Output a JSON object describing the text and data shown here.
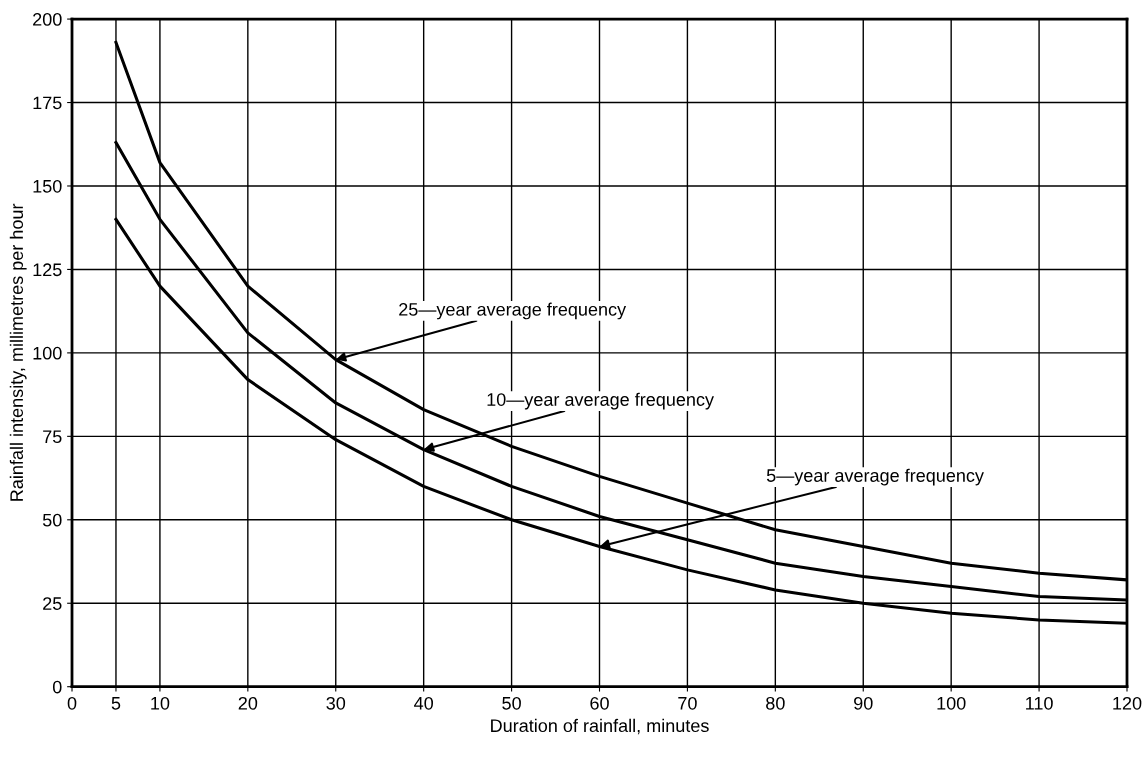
{
  "chart_data": {
    "type": "line",
    "xlabel": "Duration of rainfall, minutes",
    "ylabel": "Rainfall intensity, millimetres per hour",
    "x": [
      5,
      10,
      20,
      30,
      40,
      50,
      60,
      70,
      80,
      90,
      100,
      110,
      120
    ],
    "series": [
      {
        "color": "#000000",
        "values": [
          193,
          157,
          120,
          98,
          83,
          72,
          63,
          55,
          47,
          42,
          37,
          34,
          32
        ]
      },
      {
        "color": "#000000",
        "values": [
          163,
          140,
          106,
          85,
          71,
          60,
          51,
          44,
          37,
          33,
          30,
          27,
          26
        ]
      },
      {
        "color": "#000000",
        "values": [
          140,
          120,
          92,
          74,
          60,
          50,
          42,
          35,
          29,
          25,
          22,
          20,
          19
        ]
      }
    ],
    "xlim": [
      0,
      120
    ],
    "xticks": [
      0,
      5,
      10,
      20,
      30,
      40,
      50,
      60,
      70,
      80,
      90,
      100,
      110,
      120
    ],
    "ylim": [
      0,
      200
    ],
    "yticks": [
      0,
      25,
      50,
      75,
      100,
      125,
      150,
      175,
      200
    ],
    "grid": true,
    "marker": "none",
    "line_style": "solid",
    "annotations": [
      {
        "text": "25—year average frequency",
        "x": 30,
        "y": 98
      },
      {
        "text": "10—year average frequency",
        "x": 40,
        "y": 71
      },
      {
        "text": "5—year average frequency",
        "x": 60,
        "y": 42
      }
    ]
  }
}
